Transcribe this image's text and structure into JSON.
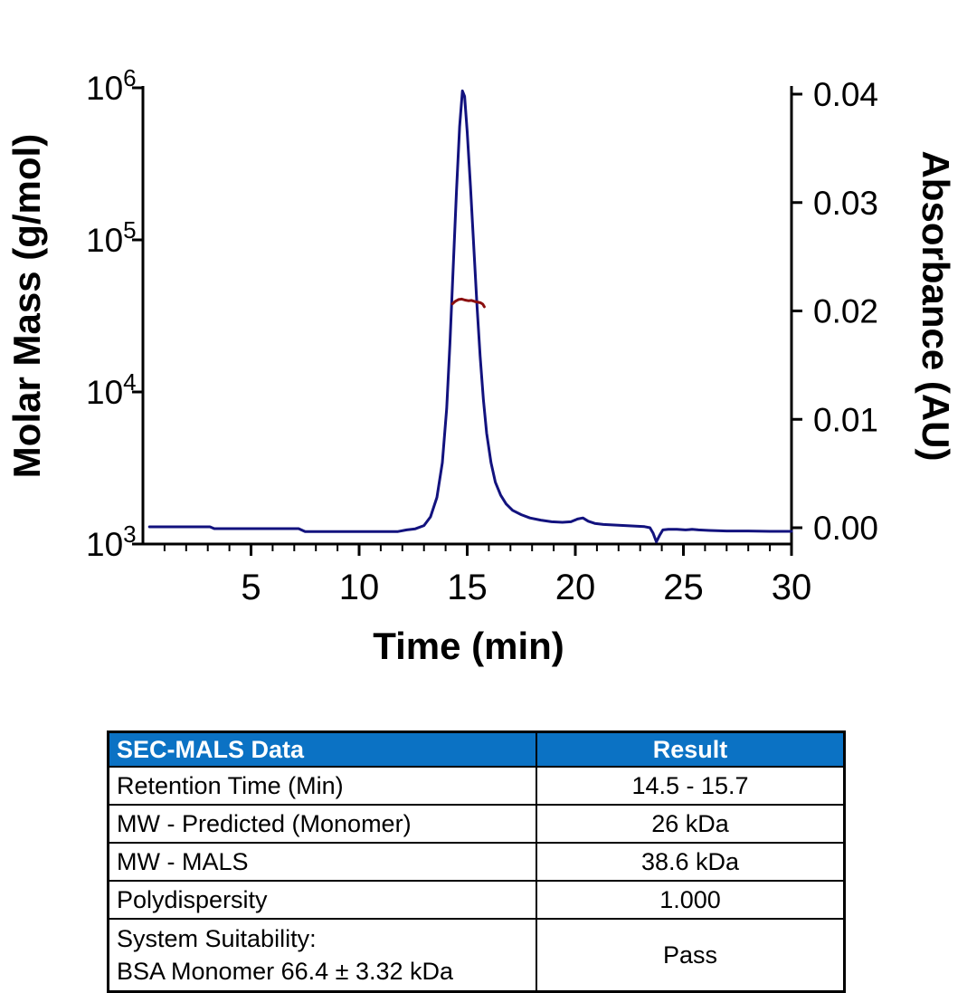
{
  "chart_data": {
    "type": "line",
    "title": "",
    "xlabel": "Time (min)",
    "ylabel_left": "Molar Mass (g/mol)",
    "ylabel_right": "Absorbance (AU)",
    "grid": false,
    "legend": false,
    "x_range": [
      0,
      30
    ],
    "x_major_ticks": [
      5,
      10,
      15,
      20,
      25,
      30
    ],
    "x_minor_tick_step": 1,
    "left_axis": {
      "scale": "log",
      "unit": "g/mol",
      "log_range": [
        3,
        6
      ],
      "tick_labels": [
        {
          "mantissa": "10",
          "exponent": "6"
        },
        {
          "mantissa": "10",
          "exponent": "5"
        },
        {
          "mantissa": "10",
          "exponent": "4"
        },
        {
          "mantissa": "10",
          "exponent": "3"
        }
      ]
    },
    "right_axis": {
      "unit": "AU",
      "range": [
        0,
        0.04
      ],
      "ticks": [
        0,
        0.01,
        0.02,
        0.03,
        0.04
      ],
      "tick_labels": [
        "0.00",
        "0.01",
        "0.02",
        "0.03",
        "0.04"
      ]
    },
    "series": [
      {
        "name": "uv-absorbance",
        "axis": "right",
        "color": "#12127e",
        "points": [
          [
            0.3,
            8e-05
          ],
          [
            1.5,
            8e-05
          ],
          [
            3.1,
            8e-05
          ],
          [
            3.3,
            -8e-05
          ],
          [
            5.0,
            -8e-05
          ],
          [
            7.2,
            -8e-05
          ],
          [
            7.5,
            -0.00035
          ],
          [
            9.0,
            -0.00035
          ],
          [
            10.5,
            -0.00035
          ],
          [
            11.8,
            -0.00035
          ],
          [
            12.2,
            -0.0002
          ],
          [
            12.6,
            -0.0001
          ],
          [
            13.0,
            0.0002
          ],
          [
            13.3,
            0.001
          ],
          [
            13.6,
            0.0028
          ],
          [
            13.85,
            0.006
          ],
          [
            14.05,
            0.011
          ],
          [
            14.2,
            0.017
          ],
          [
            14.35,
            0.024
          ],
          [
            14.5,
            0.031
          ],
          [
            14.65,
            0.037
          ],
          [
            14.78,
            0.0403
          ],
          [
            14.88,
            0.0398
          ],
          [
            15.0,
            0.0365
          ],
          [
            15.15,
            0.0315
          ],
          [
            15.3,
            0.026
          ],
          [
            15.45,
            0.0205
          ],
          [
            15.6,
            0.0158
          ],
          [
            15.75,
            0.0118
          ],
          [
            15.9,
            0.0087
          ],
          [
            16.1,
            0.006
          ],
          [
            16.3,
            0.0042
          ],
          [
            16.55,
            0.003
          ],
          [
            16.8,
            0.0022
          ],
          [
            17.1,
            0.0016
          ],
          [
            17.5,
            0.0012
          ],
          [
            17.9,
            0.0009
          ],
          [
            18.4,
            0.0007
          ],
          [
            18.9,
            0.00055
          ],
          [
            19.4,
            0.0005
          ],
          [
            19.8,
            0.00055
          ],
          [
            20.1,
            0.0008
          ],
          [
            20.35,
            0.0009
          ],
          [
            20.6,
            0.0006
          ],
          [
            20.9,
            0.0004
          ],
          [
            21.3,
            0.0003
          ],
          [
            21.8,
            0.00025
          ],
          [
            22.3,
            0.0002
          ],
          [
            22.8,
            0.00015
          ],
          [
            23.2,
            0.0001
          ],
          [
            23.45,
            0.0
          ],
          [
            23.6,
            -0.0005
          ],
          [
            23.75,
            -0.0013
          ],
          [
            23.9,
            -0.0007
          ],
          [
            24.05,
            -0.0002
          ],
          [
            24.3,
            -0.00015
          ],
          [
            24.7,
            -0.00015
          ],
          [
            25.1,
            -0.0002
          ],
          [
            25.4,
            -0.00015
          ],
          [
            25.7,
            -0.0002
          ],
          [
            26.2,
            -0.00025
          ],
          [
            27.0,
            -0.0003
          ],
          [
            28.0,
            -0.0003
          ],
          [
            29.0,
            -0.00033
          ],
          [
            30,
            -0.00033
          ]
        ]
      },
      {
        "name": "mals-molar-mass",
        "axis": "left",
        "color": "#8b0f0f",
        "points": [
          [
            14.32,
            38000
          ],
          [
            14.45,
            39500
          ],
          [
            14.6,
            40500
          ],
          [
            14.75,
            40800
          ],
          [
            14.9,
            40200
          ],
          [
            15.05,
            39800
          ],
          [
            15.2,
            40000
          ],
          [
            15.35,
            39300
          ],
          [
            15.5,
            38900
          ],
          [
            15.62,
            38600
          ],
          [
            15.72,
            37800
          ],
          [
            15.79,
            36300
          ]
        ]
      }
    ]
  },
  "table": {
    "header_bg": "#0b72c4",
    "header_text_color": "#ffffff",
    "border_color": "#000000",
    "header": {
      "col1": "SEC-MALS Data",
      "col2": "Result"
    },
    "rows": [
      {
        "label": "Retention Time (Min)",
        "value": "14.5 - 15.7"
      },
      {
        "label": "MW - Predicted (Monomer)",
        "value": "26 kDa"
      },
      {
        "label": "MW - MALS",
        "value": "38.6 kDa"
      },
      {
        "label": "Polydispersity",
        "value": "1.000"
      },
      {
        "label": "System Suitability:",
        "label2": "BSA Monomer 66.4 ± 3.32 kDa",
        "value": "Pass"
      }
    ]
  }
}
